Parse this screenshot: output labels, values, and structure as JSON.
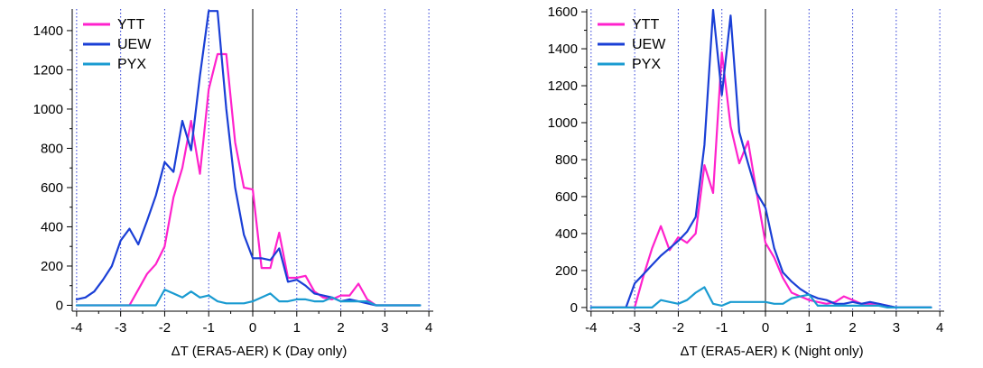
{
  "chart_data": [
    {
      "type": "line",
      "title": "",
      "xlabel": "ΔT (ERA5-AER) K (Day only)",
      "ylabel": "",
      "xlim": [
        -4.1,
        4.1
      ],
      "ylim": [
        -30,
        1510
      ],
      "xticks": [
        -4,
        -3,
        -2,
        -1,
        0,
        1,
        2,
        3,
        4
      ],
      "yticks": [
        0,
        200,
        400,
        600,
        800,
        1000,
        1200,
        1400
      ],
      "grid": "vertical dotted at integer x",
      "zero_line": true,
      "legend_position": "top-left",
      "series": [
        {
          "name": "YTT",
          "color": "#ff22cc",
          "x": [
            -4.0,
            -3.8,
            -3.6,
            -3.4,
            -3.2,
            -3.0,
            -2.8,
            -2.6,
            -2.4,
            -2.2,
            -2.0,
            -1.8,
            -1.6,
            -1.4,
            -1.2,
            -1.0,
            -0.8,
            -0.6,
            -0.4,
            -0.2,
            0.0,
            0.2,
            0.4,
            0.6,
            0.8,
            1.0,
            1.2,
            1.4,
            1.6,
            1.8,
            2.0,
            2.2,
            2.4,
            2.6,
            2.8,
            3.0,
            3.2,
            3.4,
            3.6,
            3.8
          ],
          "y": [
            0,
            0,
            0,
            0,
            0,
            0,
            0,
            80,
            160,
            210,
            300,
            550,
            700,
            940,
            670,
            1100,
            1280,
            1280,
            830,
            600,
            590,
            190,
            190,
            370,
            140,
            140,
            150,
            70,
            40,
            30,
            50,
            50,
            110,
            30,
            0,
            0,
            0,
            0,
            0,
            0
          ]
        },
        {
          "name": "UEW",
          "color": "#1a3fd6",
          "x": [
            -4.0,
            -3.8,
            -3.6,
            -3.4,
            -3.2,
            -3.0,
            -2.8,
            -2.6,
            -2.4,
            -2.2,
            -2.0,
            -1.8,
            -1.6,
            -1.4,
            -1.2,
            -1.0,
            -0.8,
            -0.6,
            -0.4,
            -0.2,
            0.0,
            0.2,
            0.4,
            0.6,
            0.8,
            1.0,
            1.2,
            1.4,
            1.6,
            1.8,
            2.0,
            2.2,
            2.4,
            2.6,
            2.8,
            3.0,
            3.2,
            3.4,
            3.6,
            3.8
          ],
          "y": [
            30,
            40,
            70,
            130,
            200,
            330,
            390,
            310,
            430,
            560,
            730,
            680,
            940,
            790,
            1170,
            1500,
            1500,
            1000,
            600,
            360,
            240,
            240,
            230,
            290,
            120,
            130,
            100,
            60,
            50,
            40,
            20,
            30,
            20,
            10,
            0,
            0,
            0,
            0,
            0,
            0
          ]
        },
        {
          "name": "PYX",
          "color": "#1a9bd1",
          "x": [
            -4.0,
            -3.8,
            -3.6,
            -3.4,
            -3.2,
            -3.0,
            -2.8,
            -2.6,
            -2.4,
            -2.2,
            -2.0,
            -1.8,
            -1.6,
            -1.4,
            -1.2,
            -1.0,
            -0.8,
            -0.6,
            -0.4,
            -0.2,
            0.0,
            0.2,
            0.4,
            0.6,
            0.8,
            1.0,
            1.2,
            1.4,
            1.6,
            1.8,
            2.0,
            2.2,
            2.4,
            2.6,
            2.8,
            3.0,
            3.2,
            3.4,
            3.6,
            3.8
          ],
          "y": [
            0,
            0,
            0,
            0,
            0,
            0,
            0,
            0,
            0,
            0,
            80,
            60,
            40,
            70,
            40,
            50,
            20,
            10,
            10,
            10,
            20,
            40,
            60,
            20,
            20,
            30,
            30,
            20,
            20,
            40,
            20,
            20,
            20,
            20,
            0,
            0,
            0,
            0,
            0,
            0
          ]
        }
      ]
    },
    {
      "type": "line",
      "title": "",
      "xlabel": "ΔT (ERA5-AER) K (Night only)",
      "ylabel": "",
      "xlim": [
        -4.1,
        4.1
      ],
      "ylim": [
        -20,
        1615
      ],
      "xticks": [
        -4,
        -3,
        -2,
        -1,
        0,
        1,
        2,
        3,
        4
      ],
      "yticks": [
        0,
        200,
        400,
        600,
        800,
        1000,
        1200,
        1400,
        1600
      ],
      "grid": "vertical dotted at integer x",
      "zero_line": true,
      "legend_position": "top-left",
      "series": [
        {
          "name": "YTT",
          "color": "#ff22cc",
          "x": [
            -4.0,
            -3.8,
            -3.6,
            -3.4,
            -3.2,
            -3.0,
            -2.8,
            -2.6,
            -2.4,
            -2.2,
            -2.0,
            -1.8,
            -1.6,
            -1.4,
            -1.2,
            -1.0,
            -0.8,
            -0.6,
            -0.4,
            -0.2,
            0.0,
            0.2,
            0.4,
            0.6,
            0.8,
            1.0,
            1.2,
            1.4,
            1.6,
            1.8,
            2.0,
            2.2,
            2.4,
            2.6,
            2.8,
            3.0,
            3.2,
            3.4,
            3.6,
            3.8
          ],
          "y": [
            0,
            0,
            0,
            0,
            0,
            0,
            170,
            320,
            440,
            310,
            380,
            350,
            400,
            770,
            620,
            1380,
            980,
            780,
            900,
            620,
            350,
            270,
            160,
            80,
            60,
            40,
            30,
            20,
            30,
            60,
            40,
            20,
            20,
            20,
            10,
            0,
            0,
            0,
            0,
            0
          ]
        },
        {
          "name": "UEW",
          "color": "#1a3fd6",
          "x": [
            -4.0,
            -3.8,
            -3.6,
            -3.4,
            -3.2,
            -3.0,
            -2.8,
            -2.6,
            -2.4,
            -2.2,
            -2.0,
            -1.8,
            -1.6,
            -1.4,
            -1.2,
            -1.0,
            -0.8,
            -0.6,
            -0.4,
            -0.2,
            0.0,
            0.2,
            0.4,
            0.6,
            0.8,
            1.0,
            1.2,
            1.4,
            1.6,
            1.8,
            2.0,
            2.2,
            2.4,
            2.6,
            2.8,
            3.0,
            3.2,
            3.4,
            3.6,
            3.8
          ],
          "y": [
            0,
            0,
            0,
            0,
            0,
            130,
            180,
            230,
            280,
            320,
            360,
            410,
            490,
            880,
            1610,
            1150,
            1580,
            950,
            780,
            620,
            540,
            320,
            190,
            140,
            100,
            70,
            50,
            40,
            20,
            20,
            30,
            20,
            30,
            20,
            10,
            0,
            0,
            0,
            0,
            0
          ]
        },
        {
          "name": "PYX",
          "color": "#1a9bd1",
          "x": [
            -4.0,
            -3.8,
            -3.6,
            -3.4,
            -3.2,
            -3.0,
            -2.8,
            -2.6,
            -2.4,
            -2.2,
            -2.0,
            -1.8,
            -1.6,
            -1.4,
            -1.2,
            -1.0,
            -0.8,
            -0.6,
            -0.4,
            -0.2,
            0.0,
            0.2,
            0.4,
            0.6,
            0.8,
            1.0,
            1.2,
            1.4,
            1.6,
            1.8,
            2.0,
            2.2,
            2.4,
            2.6,
            2.8,
            3.0,
            3.2,
            3.4,
            3.6,
            3.8
          ],
          "y": [
            0,
            0,
            0,
            0,
            0,
            0,
            0,
            0,
            40,
            30,
            20,
            40,
            80,
            110,
            20,
            10,
            30,
            30,
            30,
            30,
            30,
            20,
            20,
            50,
            60,
            70,
            10,
            10,
            10,
            10,
            10,
            10,
            10,
            10,
            0,
            0,
            0,
            0,
            0,
            0
          ]
        }
      ]
    }
  ]
}
